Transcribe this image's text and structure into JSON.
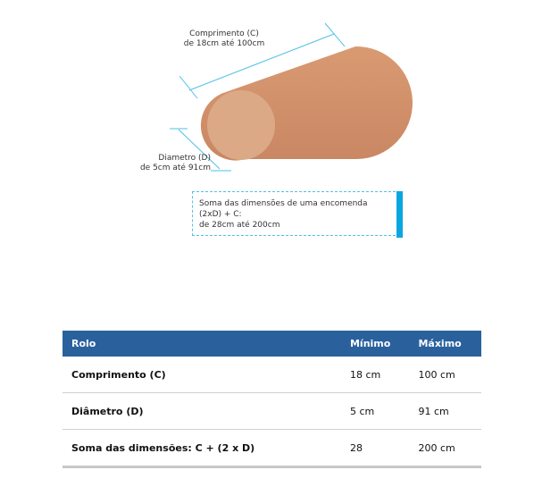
{
  "diagram": {
    "length_label_line1": "Comprimento (C)",
    "length_label_line2": "de 18cm até 100cm",
    "diameter_label_line1": "Diametro (D)",
    "diameter_label_line2": "de 5cm até 91cm",
    "sum_line1": "Soma das dimensões de uma encomenda",
    "sum_line2": "(2xD) + C:",
    "sum_line3": "de 28cm até 200cm",
    "colors": {
      "cylinder_body": "#d4926c",
      "cylinder_end": "#ddab8a",
      "accent": "#0aa6e0",
      "dimension_line": "#4dc2e8"
    }
  },
  "table": {
    "headers": [
      "Rolo",
      "Mínimo",
      "Máximo"
    ],
    "rows": [
      {
        "label": "Comprimento (C)",
        "min": "18 cm",
        "max": "100 cm"
      },
      {
        "label": "Diâmetro (D)",
        "min": "5 cm",
        "max": "91 cm"
      },
      {
        "label": "Soma das dimensões: C + (2 x D)",
        "min": "28",
        "max": "200 cm"
      }
    ],
    "header_color": "#2a619d"
  }
}
